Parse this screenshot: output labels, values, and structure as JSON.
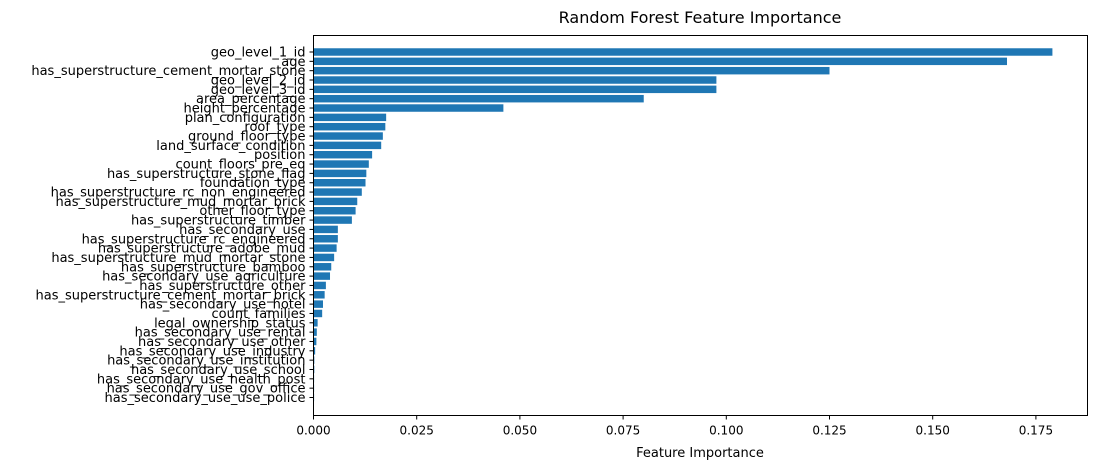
{
  "chart_data": {
    "type": "bar",
    "orientation": "horizontal",
    "title": "Random Forest Feature Importance",
    "xlabel": "Feature Importance",
    "ylabel": "",
    "xlim": [
      0,
      0.1875
    ],
    "xticks": [
      "0.000",
      "0.025",
      "0.050",
      "0.075",
      "0.100",
      "0.125",
      "0.150",
      "0.175"
    ],
    "xtick_values": [
      0,
      0.025,
      0.05,
      0.075,
      0.1,
      0.125,
      0.15,
      0.175
    ],
    "grid": false,
    "bar_color": "#1f77b4",
    "categories": [
      "geo_level_1_id",
      "age",
      "has_superstructure_cement_mortar_stone",
      "geo_level_2_id",
      "geo_level_3_id",
      "area_percentage",
      "height_percentage",
      "plan_configuration",
      "roof_type",
      "ground_floor_type",
      "land_surface_condition",
      "position",
      "count_floors_pre_eq",
      "has_superstructure_stone_flag",
      "foundation_type",
      "has_superstructure_rc_non_engineered",
      "has_superstructure_mud_mortar_brick",
      "other_floor_type",
      "has_superstructure_timber",
      "has_secondary_use",
      "has_superstructure_rc_engineered",
      "has_superstructure_adobe_mud",
      "has_superstructure_mud_mortar_stone",
      "has_superstructure_bamboo",
      "has_secondary_use_agriculture",
      "has_superstructure_other",
      "has_superstructure_cement_mortar_brick",
      "has_secondary_use_hotel",
      "count_families",
      "legal_ownership_status",
      "has_secondary_use_rental",
      "has_secondary_use_other",
      "has_secondary_use_industry",
      "has_secondary_use_institution",
      "has_secondary_use_school",
      "has_secondary_use_health_post",
      "has_secondary_use_gov_office",
      "has_secondary_use_use_police"
    ],
    "values": [
      0.179,
      0.168,
      0.125,
      0.0976,
      0.0976,
      0.08,
      0.046,
      0.0176,
      0.0174,
      0.0168,
      0.0164,
      0.0142,
      0.0134,
      0.0128,
      0.0126,
      0.0117,
      0.0106,
      0.0102,
      0.0093,
      0.0059,
      0.0059,
      0.0056,
      0.005,
      0.0043,
      0.004,
      0.003,
      0.0027,
      0.0023,
      0.0021,
      0.001,
      0.0008,
      0.0007,
      0.0004,
      0.0002,
      0.0002,
      0.0001,
      0.0001,
      5e-05
    ]
  }
}
